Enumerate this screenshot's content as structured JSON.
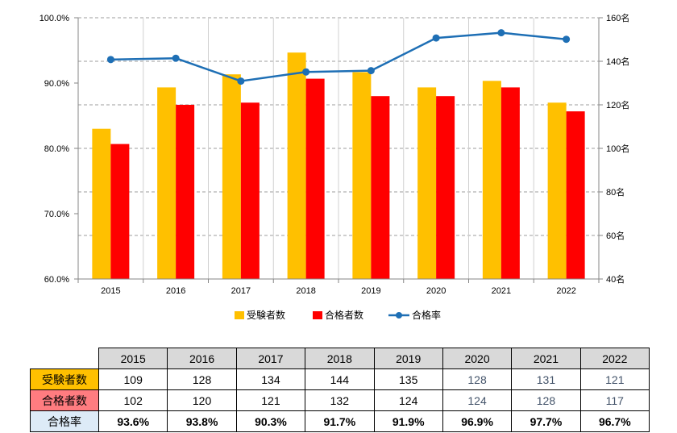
{
  "chart_data": {
    "type": "bar",
    "categories": [
      "2015",
      "2016",
      "2017",
      "2018",
      "2019",
      "2020",
      "2021",
      "2022"
    ],
    "series": [
      {
        "name": "受験者数",
        "type": "bar",
        "axis": "right",
        "color": "#FFC000",
        "values": [
          109,
          128,
          134,
          144,
          135,
          128,
          131,
          121
        ]
      },
      {
        "name": "合格者数",
        "type": "bar",
        "axis": "right",
        "color": "#FF0000",
        "values": [
          102,
          120,
          121,
          132,
          124,
          124,
          128,
          117
        ]
      },
      {
        "name": "合格率",
        "type": "line",
        "axis": "left",
        "color": "#1E6FB5",
        "values": [
          93.6,
          93.8,
          90.3,
          91.7,
          91.9,
          96.9,
          97.7,
          96.7
        ]
      }
    ],
    "left_axis": {
      "min": 60,
      "max": 100,
      "ticks": [
        {
          "value": 60,
          "label": "60.0%"
        },
        {
          "value": 70,
          "label": "70.0%"
        },
        {
          "value": 80,
          "label": "80.0%"
        },
        {
          "value": 90,
          "label": "90.0%"
        },
        {
          "value": 100,
          "label": "100.0%"
        }
      ]
    },
    "right_axis": {
      "min": 40,
      "max": 160,
      "ticks": [
        {
          "value": 40,
          "label": "40名"
        },
        {
          "value": 60,
          "label": "60名"
        },
        {
          "value": 80,
          "label": "80名"
        },
        {
          "value": 100,
          "label": "100名"
        },
        {
          "value": 120,
          "label": "120名"
        },
        {
          "value": 140,
          "label": "140名"
        },
        {
          "value": 160,
          "label": "160名"
        }
      ]
    },
    "grid": true,
    "legend_position": "bottom"
  },
  "table": {
    "header": [
      "2015",
      "2016",
      "2017",
      "2018",
      "2019",
      "2020",
      "2021",
      "2022"
    ],
    "rows": [
      {
        "label": "受験者数",
        "bg": "#FFC000",
        "values": [
          "109",
          "128",
          "134",
          "144",
          "135",
          "128",
          "131",
          "121"
        ]
      },
      {
        "label": "合格者数",
        "bg": "#FF7C80",
        "values": [
          "102",
          "120",
          "121",
          "132",
          "124",
          "124",
          "128",
          "117"
        ]
      },
      {
        "label": "合格率",
        "bg": "#DDEBF7",
        "values": [
          "93.6%",
          "93.8%",
          "90.3%",
          "91.7%",
          "91.9%",
          "96.9%",
          "97.7%",
          "96.7%"
        ]
      }
    ]
  }
}
